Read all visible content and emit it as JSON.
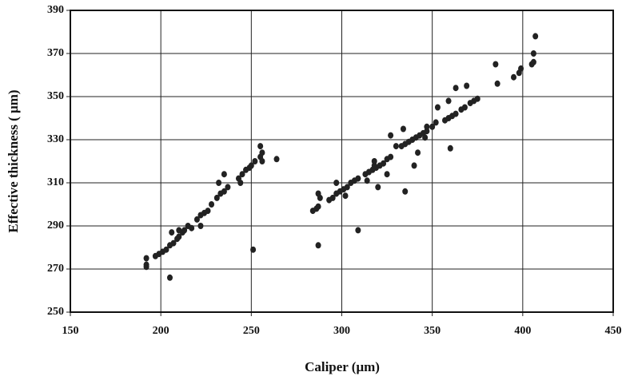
{
  "chart_data": {
    "type": "scatter",
    "x_label": "Caliper (μm)",
    "y_label": "Effective thickness ( μm)",
    "x": [
      192,
      192,
      192,
      197,
      199,
      201,
      203,
      205,
      207,
      209,
      210,
      212,
      213,
      215,
      217,
      220,
      222,
      224,
      226,
      228,
      231,
      233,
      235,
      237,
      243,
      245,
      247,
      249,
      250,
      255,
      256,
      255,
      252,
      256,
      206,
      210,
      222,
      232,
      235,
      244,
      205,
      251,
      264,
      284,
      286,
      287,
      288,
      287,
      293,
      295,
      297,
      299,
      301,
      303,
      305,
      307,
      309,
      313,
      315,
      317,
      319,
      321,
      323,
      325,
      327,
      330,
      333,
      335,
      337,
      339,
      341,
      343,
      345,
      347,
      350,
      352,
      357,
      359,
      361,
      363,
      366,
      368,
      371,
      373,
      375,
      386,
      395,
      398,
      399,
      405,
      406,
      318,
      318,
      327,
      325,
      320,
      314,
      297,
      302,
      334,
      340,
      342,
      346,
      347,
      353,
      359,
      363,
      369,
      360,
      335,
      309,
      287,
      385,
      406,
      407
    ],
    "y": [
      271,
      272,
      275,
      276,
      277,
      278,
      279,
      281,
      282,
      284,
      285,
      287,
      288,
      290,
      289,
      293,
      295,
      296,
      297,
      300,
      303,
      305,
      306,
      308,
      312,
      314,
      316,
      317,
      318,
      322,
      324,
      327,
      320,
      320,
      287,
      288,
      290,
      310,
      314,
      310,
      266,
      279,
      321,
      297,
      298,
      299,
      303,
      305,
      302,
      303,
      305,
      306,
      307,
      308,
      310,
      311,
      312,
      314,
      315,
      316,
      317,
      318,
      319,
      321,
      322,
      327,
      327,
      328,
      329,
      330,
      331,
      332,
      333,
      334,
      336,
      338,
      339,
      340,
      341,
      342,
      344,
      345,
      347,
      348,
      349,
      356,
      359,
      361,
      363,
      365,
      366,
      320,
      318,
      332,
      314,
      308,
      311,
      310,
      304,
      335,
      318,
      324,
      331,
      336,
      345,
      348,
      354,
      355,
      326,
      306,
      288,
      281,
      365,
      370,
      378
    ],
    "color": "#222222",
    "xlim": [
      150,
      450
    ],
    "xticks": [
      150,
      200,
      250,
      300,
      350,
      400,
      450
    ],
    "ylim": [
      250,
      390
    ],
    "yticks": [
      250,
      270,
      290,
      310,
      330,
      350,
      370,
      390
    ],
    "grid": true
  }
}
